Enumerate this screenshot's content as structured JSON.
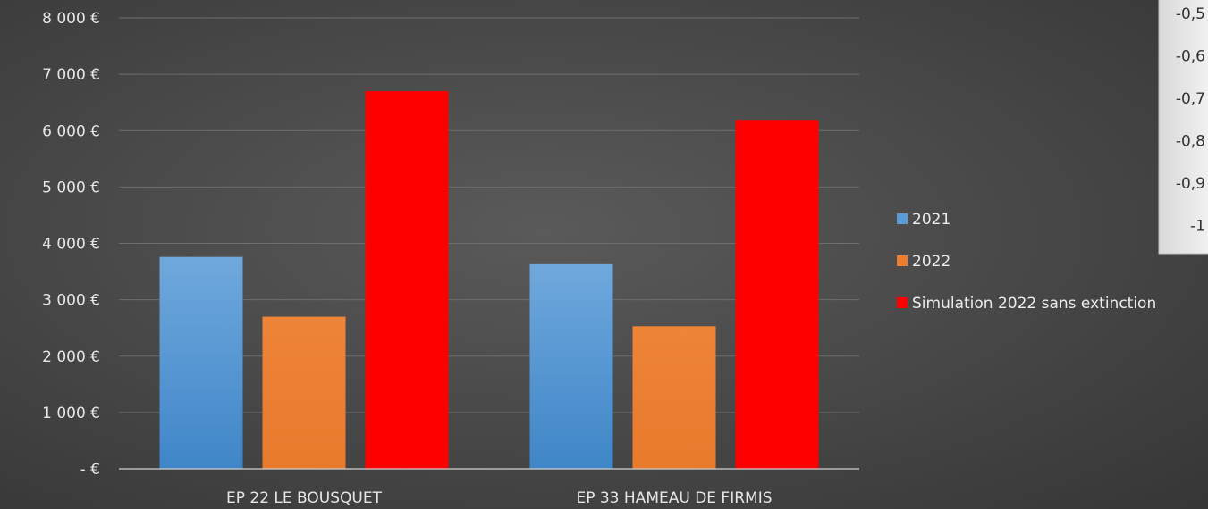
{
  "chart_data": {
    "type": "bar",
    "categories": [
      "EP 22 LE BOUSQUET",
      "EP 33 HAMEAU DE FIRMIS"
    ],
    "series": [
      {
        "name": "2021",
        "values": [
          3760,
          3630
        ],
        "color": "#5b9bd5"
      },
      {
        "name": "2022",
        "values": [
          2700,
          2530
        ],
        "color": "#ed7d31"
      },
      {
        "name": "Simulation 2022 sans extinction",
        "values": [
          6700,
          6190
        ],
        "color": "#ff0000"
      }
    ],
    "ylim": [
      0,
      8000
    ],
    "yticks": [
      {
        "value": 0,
        "label": "-   €"
      },
      {
        "value": 1000,
        "label": "1 000 €"
      },
      {
        "value": 2000,
        "label": "2 000 €"
      },
      {
        "value": 3000,
        "label": "3 000 €"
      },
      {
        "value": 4000,
        "label": "4 000 €"
      },
      {
        "value": 5000,
        "label": "5 000 €"
      },
      {
        "value": 6000,
        "label": "6 000 €"
      },
      {
        "value": 7000,
        "label": "7 000 €"
      },
      {
        "value": 8000,
        "label": "8 000 €"
      }
    ],
    "grid": true,
    "legend_position": "right"
  },
  "side_panel": {
    "labels": [
      "-0,5",
      "-0,6",
      "-0,7",
      "-0,8",
      "-0,9",
      "-1"
    ]
  }
}
